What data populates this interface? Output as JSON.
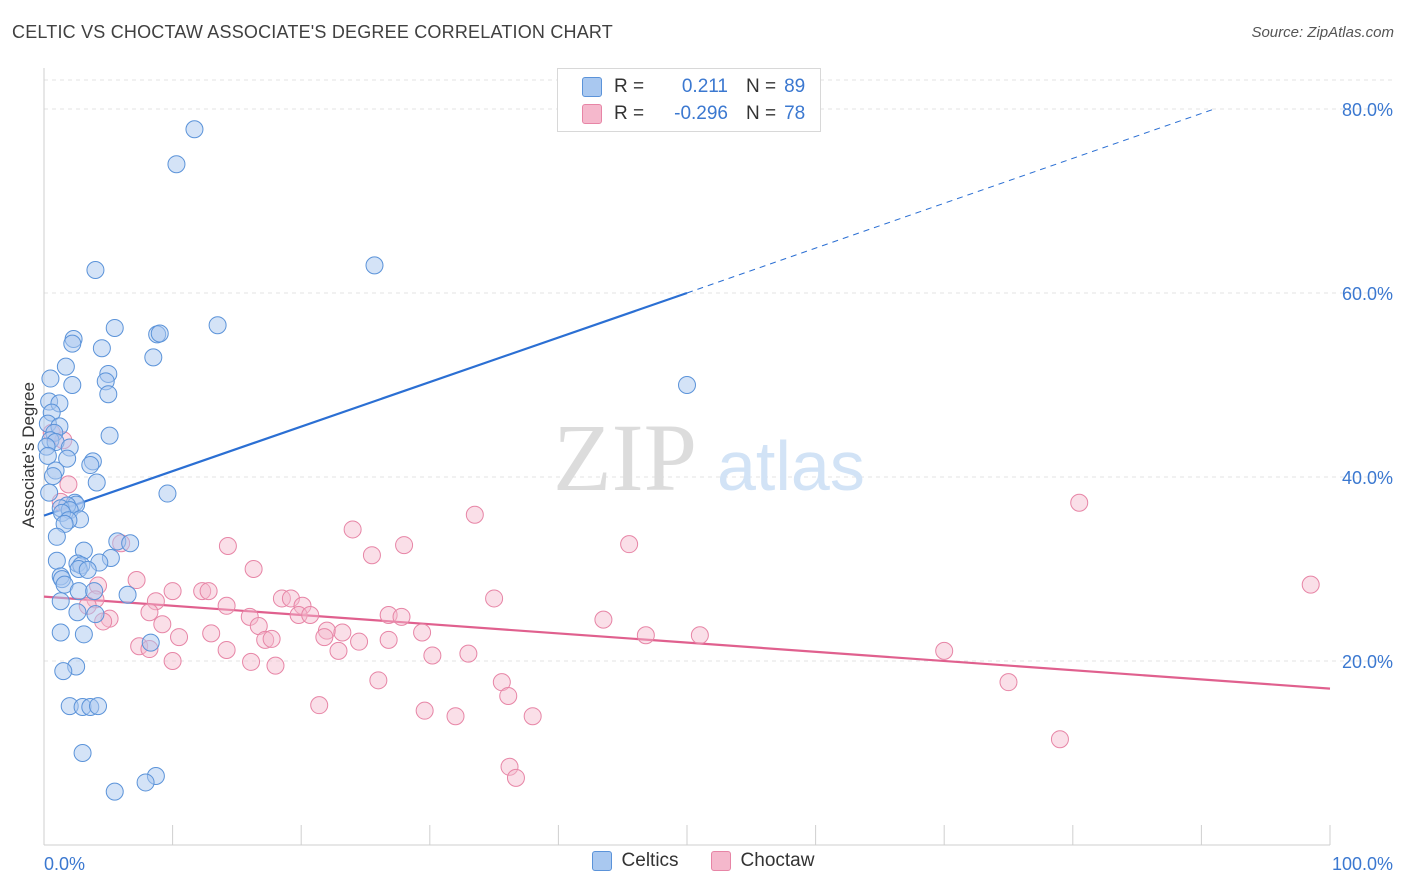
{
  "title": "CELTIC VS CHOCTAW ASSOCIATE'S DEGREE CORRELATION CHART",
  "source": "Source: ZipAtlas.com",
  "watermark": {
    "zip": "ZIP",
    "atlas": "atlas"
  },
  "colors": {
    "celtics_fill": "#a9c8f0",
    "celtics_stroke": "#5b93d9",
    "celtics_line": "#2b6fd3",
    "choctaw_fill": "#f5b8cc",
    "choctaw_stroke": "#e785a6",
    "choctaw_line": "#e0608e",
    "axis_text": "#3b78d0",
    "grid": "#e3e3e3"
  },
  "legend_top": {
    "celtics": {
      "r_label": "R =",
      "r_value": "0.211",
      "n_label": "N =",
      "n_value": "89"
    },
    "choctaw": {
      "r_label": "R =",
      "r_value": "-0.296",
      "n_label": "N =",
      "n_value": "78"
    }
  },
  "legend_bottom": {
    "celtics": "Celtics",
    "choctaw": "Choctaw"
  },
  "chart_data": {
    "type": "scatter",
    "title": "CELTIC VS CHOCTAW ASSOCIATE'S DEGREE CORRELATION CHART",
    "xlabel": "",
    "ylabel": "Associate's Degree",
    "xlim": [
      0,
      100
    ],
    "ylim": [
      0,
      85
    ],
    "x_tick_labels": {
      "min": "0.0%",
      "max": "100.0%"
    },
    "y_ticks": [
      20,
      40,
      60,
      80
    ],
    "y_tick_labels": [
      "20.0%",
      "40.0%",
      "60.0%",
      "80.0%"
    ],
    "grid": true,
    "legend": "top-center",
    "series": [
      {
        "name": "Celtics",
        "r": 0.211,
        "n": 89,
        "trend": {
          "x0": 0,
          "y0": 35.8,
          "x1": 50,
          "y1": 60.0,
          "dashed_to_x": 91,
          "dashed_to_y": 80.0
        },
        "points": [
          [
            11.7,
            77.8
          ],
          [
            10.3,
            74.0
          ],
          [
            4.0,
            62.5
          ],
          [
            25.7,
            63.0
          ],
          [
            13.5,
            56.5
          ],
          [
            5.5,
            56.2
          ],
          [
            8.8,
            55.5
          ],
          [
            9.0,
            55.6
          ],
          [
            2.3,
            55.0
          ],
          [
            2.2,
            54.5
          ],
          [
            4.5,
            54.0
          ],
          [
            8.5,
            53.0
          ],
          [
            1.7,
            52.0
          ],
          [
            5.0,
            51.2
          ],
          [
            0.5,
            50.7
          ],
          [
            4.8,
            50.4
          ],
          [
            2.2,
            50.0
          ],
          [
            50.0,
            50.0
          ],
          [
            5.0,
            49.0
          ],
          [
            0.4,
            48.2
          ],
          [
            1.2,
            48.0
          ],
          [
            0.6,
            47.0
          ],
          [
            0.3,
            45.8
          ],
          [
            1.2,
            45.5
          ],
          [
            0.8,
            44.8
          ],
          [
            5.1,
            44.5
          ],
          [
            0.5,
            44.0
          ],
          [
            0.9,
            43.8
          ],
          [
            0.2,
            43.3
          ],
          [
            2.0,
            43.2
          ],
          [
            0.3,
            42.3
          ],
          [
            1.8,
            42.0
          ],
          [
            3.8,
            41.7
          ],
          [
            3.6,
            41.3
          ],
          [
            0.9,
            40.7
          ],
          [
            0.7,
            40.1
          ],
          [
            4.1,
            39.4
          ],
          [
            0.4,
            38.3
          ],
          [
            9.6,
            38.2
          ],
          [
            2.4,
            37.2
          ],
          [
            2.5,
            37.0
          ],
          [
            1.8,
            36.9
          ],
          [
            1.3,
            36.6
          ],
          [
            2.0,
            36.4
          ],
          [
            1.4,
            36.1
          ],
          [
            2.8,
            35.4
          ],
          [
            1.9,
            35.3
          ],
          [
            1.6,
            34.9
          ],
          [
            1.0,
            33.5
          ],
          [
            5.7,
            33.0
          ],
          [
            6.7,
            32.8
          ],
          [
            3.1,
            32.0
          ],
          [
            5.2,
            31.2
          ],
          [
            1.0,
            30.9
          ],
          [
            2.6,
            30.6
          ],
          [
            4.3,
            30.7
          ],
          [
            2.9,
            30.4
          ],
          [
            2.7,
            30.0
          ],
          [
            3.4,
            29.9
          ],
          [
            1.3,
            29.2
          ],
          [
            1.4,
            28.9
          ],
          [
            1.6,
            28.3
          ],
          [
            2.7,
            27.6
          ],
          [
            3.9,
            27.6
          ],
          [
            6.5,
            27.2
          ],
          [
            1.3,
            26.5
          ],
          [
            2.6,
            25.3
          ],
          [
            4.0,
            25.1
          ],
          [
            1.3,
            23.1
          ],
          [
            3.1,
            22.9
          ],
          [
            8.3,
            22.0
          ],
          [
            2.5,
            19.4
          ],
          [
            1.5,
            18.9
          ],
          [
            2.0,
            15.1
          ],
          [
            3.0,
            15.0
          ],
          [
            3.6,
            15.0
          ],
          [
            4.2,
            15.1
          ],
          [
            3.0,
            10.0
          ],
          [
            8.7,
            7.5
          ],
          [
            7.9,
            6.8
          ],
          [
            5.5,
            5.8
          ]
        ]
      },
      {
        "name": "Choctaw",
        "r": -0.296,
        "n": 78,
        "trend": {
          "x0": 0,
          "y0": 27.0,
          "x1": 100,
          "y1": 17.0
        },
        "points": [
          [
            0.6,
            44.8
          ],
          [
            1.5,
            44.0
          ],
          [
            1.9,
            39.2
          ],
          [
            1.3,
            37.3
          ],
          [
            80.5,
            37.2
          ],
          [
            33.5,
            35.9
          ],
          [
            24.0,
            34.3
          ],
          [
            28.0,
            32.6
          ],
          [
            45.5,
            32.7
          ],
          [
            14.3,
            32.5
          ],
          [
            25.5,
            31.5
          ],
          [
            16.3,
            30.0
          ],
          [
            6.0,
            32.8
          ],
          [
            7.2,
            28.8
          ],
          [
            4.2,
            28.2
          ],
          [
            98.5,
            28.3
          ],
          [
            10.0,
            27.6
          ],
          [
            12.3,
            27.6
          ],
          [
            12.8,
            27.6
          ],
          [
            35.0,
            26.8
          ],
          [
            18.5,
            26.8
          ],
          [
            19.2,
            26.8
          ],
          [
            4.0,
            26.7
          ],
          [
            3.4,
            26.0
          ],
          [
            8.7,
            26.5
          ],
          [
            14.2,
            26.0
          ],
          [
            20.1,
            26.0
          ],
          [
            8.2,
            25.3
          ],
          [
            19.8,
            25.0
          ],
          [
            20.7,
            25.0
          ],
          [
            16.0,
            24.8
          ],
          [
            26.8,
            25.0
          ],
          [
            27.8,
            24.8
          ],
          [
            43.5,
            24.5
          ],
          [
            5.1,
            24.6
          ],
          [
            4.6,
            24.3
          ],
          [
            9.2,
            24.0
          ],
          [
            16.7,
            23.8
          ],
          [
            22.0,
            23.3
          ],
          [
            13.0,
            23.0
          ],
          [
            10.5,
            22.6
          ],
          [
            23.2,
            23.1
          ],
          [
            29.4,
            23.1
          ],
          [
            46.8,
            22.8
          ],
          [
            51.0,
            22.8
          ],
          [
            21.8,
            22.6
          ],
          [
            17.2,
            22.3
          ],
          [
            17.7,
            22.4
          ],
          [
            26.8,
            22.3
          ],
          [
            24.5,
            22.1
          ],
          [
            7.4,
            21.6
          ],
          [
            8.2,
            21.3
          ],
          [
            14.2,
            21.2
          ],
          [
            22.9,
            21.1
          ],
          [
            10.0,
            20.0
          ],
          [
            30.2,
            20.6
          ],
          [
            33.0,
            20.8
          ],
          [
            70.0,
            21.1
          ],
          [
            16.1,
            19.9
          ],
          [
            18.0,
            19.5
          ],
          [
            26.0,
            17.9
          ],
          [
            35.6,
            17.7
          ],
          [
            75.0,
            17.7
          ],
          [
            36.1,
            16.2
          ],
          [
            21.4,
            15.2
          ],
          [
            29.6,
            14.6
          ],
          [
            32.0,
            14.0
          ],
          [
            38.0,
            14.0
          ],
          [
            79.0,
            11.5
          ],
          [
            36.2,
            8.5
          ],
          [
            36.7,
            7.3
          ]
        ]
      }
    ]
  }
}
